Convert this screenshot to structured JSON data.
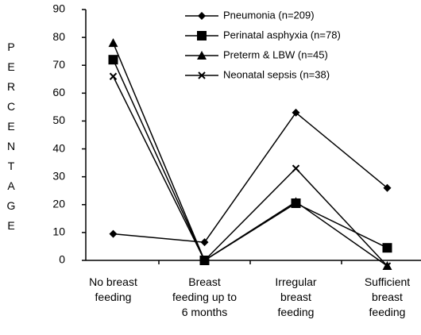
{
  "chart_data": {
    "type": "line",
    "y_label": "PERCENTAGE",
    "categories": [
      "No breast\nfeeding",
      "Breast\nfeeding up to\n6 months",
      "Irregular\nbreast\nfeeding",
      "Sufficient\nbreast\nfeeding"
    ],
    "series": [
      {
        "name": "Pneumonia (n=209)",
        "color": "#000000",
        "marker": "diamond",
        "values": [
          9.5,
          6.5,
          53,
          26
        ]
      },
      {
        "name": "Perinatal asphyxia (n=78)",
        "color": "#000000",
        "marker": "square",
        "values": [
          72,
          0,
          20.5,
          4.5
        ]
      },
      {
        "name": "Preterm & LBW (n=45)",
        "color": "#000000",
        "marker": "triangle",
        "values": [
          78,
          0,
          21,
          -2
        ]
      },
      {
        "name": "Neonatal sepsis (n=38)",
        "color": "#000000",
        "marker": "x",
        "values": [
          66,
          0,
          33,
          -2
        ]
      }
    ],
    "ylim": [
      0,
      90
    ],
    "yticks": [
      0,
      10,
      20,
      30,
      40,
      50,
      60,
      70,
      80,
      90
    ],
    "legend": "upper right",
    "grid": false
  }
}
